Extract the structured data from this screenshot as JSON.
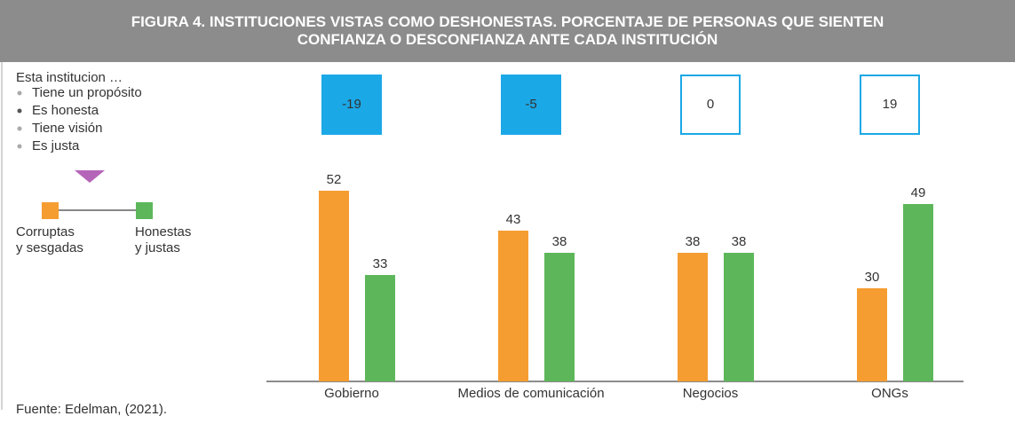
{
  "chart_data": {
    "type": "bar",
    "title": "FIGURA 4. INSTITUCIONES VISTAS COMO DESHONESTAS. PORCENTAJE DE PERSONAS QUE SIENTEN CONFIANZA O DESCONFIANZA ANTE CADA INSTITUCIÓN",
    "sidebar": {
      "heading": "Esta institucion …",
      "items": [
        "Tiene un propósito",
        "Es honesta",
        "Tiene visión",
        "Es justa"
      ],
      "highlighted": 1
    },
    "categories": [
      "Gobierno",
      "Medios de comunicación",
      "Negocios",
      "ONGs"
    ],
    "series": [
      {
        "name": "Corruptas y sesgadas",
        "color": "#f59d31",
        "values": [
          52,
          43,
          38,
          30
        ]
      },
      {
        "name": "Honestas y justas",
        "color": "#5db75a",
        "values": [
          33,
          38,
          38,
          49
        ]
      }
    ],
    "differences": [
      -19,
      -5,
      0,
      19
    ],
    "difference_color": "#1ba8e6",
    "ylim": [
      9,
      60
    ],
    "source": "Fuente: Edelman, (2021)."
  }
}
